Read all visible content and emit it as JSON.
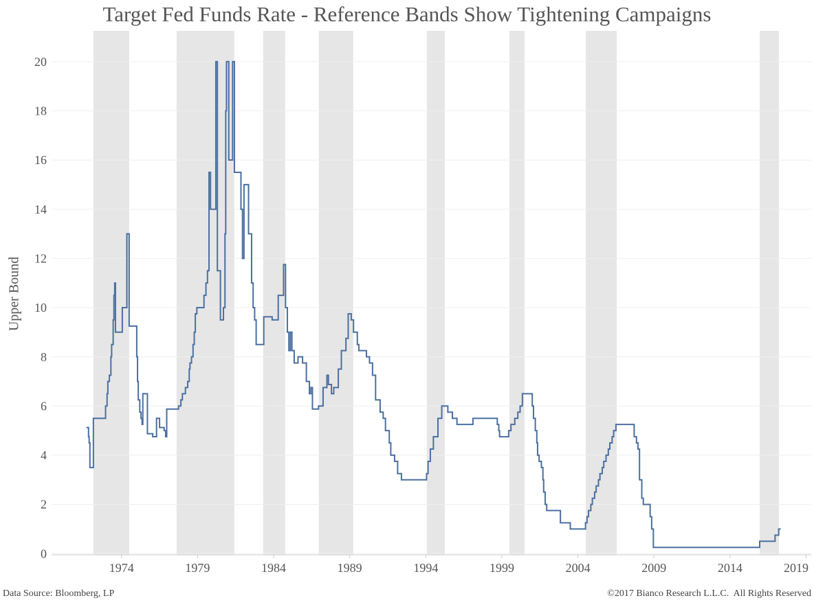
{
  "chart_data": {
    "type": "step",
    "title": "Target Fed Funds Rate - Reference Bands Show Tightening Campaigns",
    "y_label": "Upper Bound",
    "source": "Data Source: Bloomberg, LP",
    "copyright": "©2017 Bianco Research L.L.C.  All Rights Reserved",
    "color": "#4a6fa0",
    "band_color": "#e6e6e6",
    "grid": true,
    "xlim": [
      1969.4,
      2019.34
    ],
    "xticks": [
      1974,
      1979,
      1984,
      1989,
      1994,
      1999,
      2004,
      2009,
      2014,
      2019
    ],
    "ylim": [
      -0.05,
      21.25
    ],
    "yticks": [
      0,
      2,
      4,
      6,
      8,
      10,
      12,
      14,
      16,
      18,
      20
    ],
    "bands": [
      {
        "start": 1972.15,
        "end": 1974.5
      },
      {
        "start": 1977.62,
        "end": 1981.41
      },
      {
        "start": 1983.31,
        "end": 1984.76
      },
      {
        "start": 1986.97,
        "end": 1989.23
      },
      {
        "start": 1994.07,
        "end": 1995.25
      },
      {
        "start": 1999.5,
        "end": 2000.49
      },
      {
        "start": 2004.52,
        "end": 2006.55
      },
      {
        "start": 2015.95,
        "end": 2017.22
      }
    ],
    "x": [
      1971.69,
      1971.83,
      1971.87,
      1971.92,
      1972.15,
      1972.95,
      1973.05,
      1973.1,
      1973.2,
      1973.3,
      1973.35,
      1973.45,
      1973.5,
      1973.55,
      1973.6,
      1974.05,
      1974.35,
      1974.5,
      1975.0,
      1975.05,
      1975.1,
      1975.2,
      1975.28,
      1975.35,
      1975.4,
      1975.7,
      1976.05,
      1976.3,
      1976.5,
      1976.8,
      1976.9,
      1976.97,
      1977.75,
      1977.9,
      1978.0,
      1978.2,
      1978.35,
      1978.45,
      1978.5,
      1978.6,
      1978.7,
      1978.78,
      1978.85,
      1978.95,
      1979.42,
      1979.55,
      1979.65,
      1979.75,
      1979.85,
      1980.2,
      1980.3,
      1980.5,
      1980.7,
      1980.8,
      1980.85,
      1980.9,
      1981.05,
      1981.3,
      1981.42,
      1981.85,
      1981.95,
      1982.05,
      1982.35,
      1982.55,
      1982.65,
      1982.75,
      1982.85,
      1983.35,
      1983.9,
      1984.3,
      1984.65,
      1984.78,
      1984.9,
      1985.0,
      1985.1,
      1985.2,
      1985.35,
      1985.6,
      1985.9,
      1986.15,
      1986.35,
      1986.45,
      1986.55,
      1986.95,
      1987.25,
      1987.5,
      1987.6,
      1987.8,
      1987.95,
      1988.25,
      1988.45,
      1988.75,
      1988.9,
      1989.1,
      1989.25,
      1989.5,
      1989.6,
      1990.1,
      1990.3,
      1990.5,
      1990.7,
      1991.0,
      1991.2,
      1991.35,
      1991.6,
      1991.7,
      1991.95,
      1992.15,
      1992.4,
      1994.05,
      1994.15,
      1994.3,
      1994.5,
      1994.8,
      1995.05,
      1995.45,
      1995.75,
      1996.05,
      1997.1,
      1998.7,
      1998.8,
      1998.85,
      1999.45,
      1999.6,
      1999.85,
      2000.05,
      2000.2,
      2000.35,
      2001.0,
      2001.08,
      2001.2,
      2001.3,
      2001.35,
      2001.45,
      2001.6,
      2001.7,
      2001.75,
      2001.85,
      2001.95,
      2002.85,
      2003.5,
      2004.5,
      2004.6,
      2004.7,
      2004.85,
      2004.95,
      2005.1,
      2005.2,
      2005.35,
      2005.45,
      2005.6,
      2005.7,
      2005.85,
      2006.0,
      2006.1,
      2006.25,
      2006.35,
      2006.5,
      2007.7,
      2007.85,
      2007.95,
      2008.05,
      2008.2,
      2008.3,
      2008.75,
      2008.85,
      2008.96,
      2015.95,
      2016.96,
      2017.2
    ],
    "values": [
      5.125,
      4.75,
      4.5,
      3.5,
      5.5,
      6,
      6.5,
      7,
      7.25,
      8,
      8.5,
      9.5,
      10.5,
      11,
      9,
      10,
      13,
      9.25,
      8,
      7,
      6.25,
      5.75,
      5.5,
      5.25,
      6.5,
      4.875,
      4.75,
      5.5,
      5.125,
      5.0,
      4.75,
      5.875,
      6.0,
      6.25,
      6.5,
      6.75,
      7.0,
      7.5,
      7.75,
      8,
      8.5,
      9,
      9.75,
      10,
      10.5,
      11,
      11.5,
      15.5,
      14,
      20,
      11.5,
      9.5,
      10,
      13,
      18,
      20,
      16,
      20,
      15.5,
      14,
      12,
      15,
      13,
      11,
      10,
      9.5,
      8.5,
      9.625,
      9.5,
      10.5,
      11.75,
      10,
      9,
      8.25,
      9,
      8.25,
      7.75,
      8,
      7.75,
      7,
      6.5,
      6.75,
      5.875,
      6,
      6.75,
      7.25,
      6.875,
      6.5,
      6.75,
      7.5,
      8.25,
      8.75,
      9.75,
      9.5,
      9,
      8.5,
      8.25,
      8,
      7.75,
      7.25,
      6.25,
      5.75,
      5.5,
      5,
      4.5,
      4,
      3.75,
      3.25,
      3,
      3.25,
      3.75,
      4.25,
      4.75,
      5.5,
      6,
      5.75,
      5.5,
      5.25,
      5.5,
      5.25,
      5,
      4.75,
      5,
      5.25,
      5.5,
      5.75,
      6,
      6.5,
      6,
      5.5,
      5,
      4.5,
      4,
      3.75,
      3.5,
      3,
      2.5,
      2,
      1.75,
      1.25,
      1,
      1.25,
      1.5,
      1.75,
      2,
      2.25,
      2.5,
      2.75,
      3,
      3.25,
      3.5,
      3.75,
      4,
      4.25,
      4.5,
      4.75,
      5,
      5.25,
      4.75,
      4.5,
      4.25,
      3,
      2.25,
      2,
      1.5,
      1,
      0.25,
      0.5,
      0.75,
      1
    ]
  }
}
